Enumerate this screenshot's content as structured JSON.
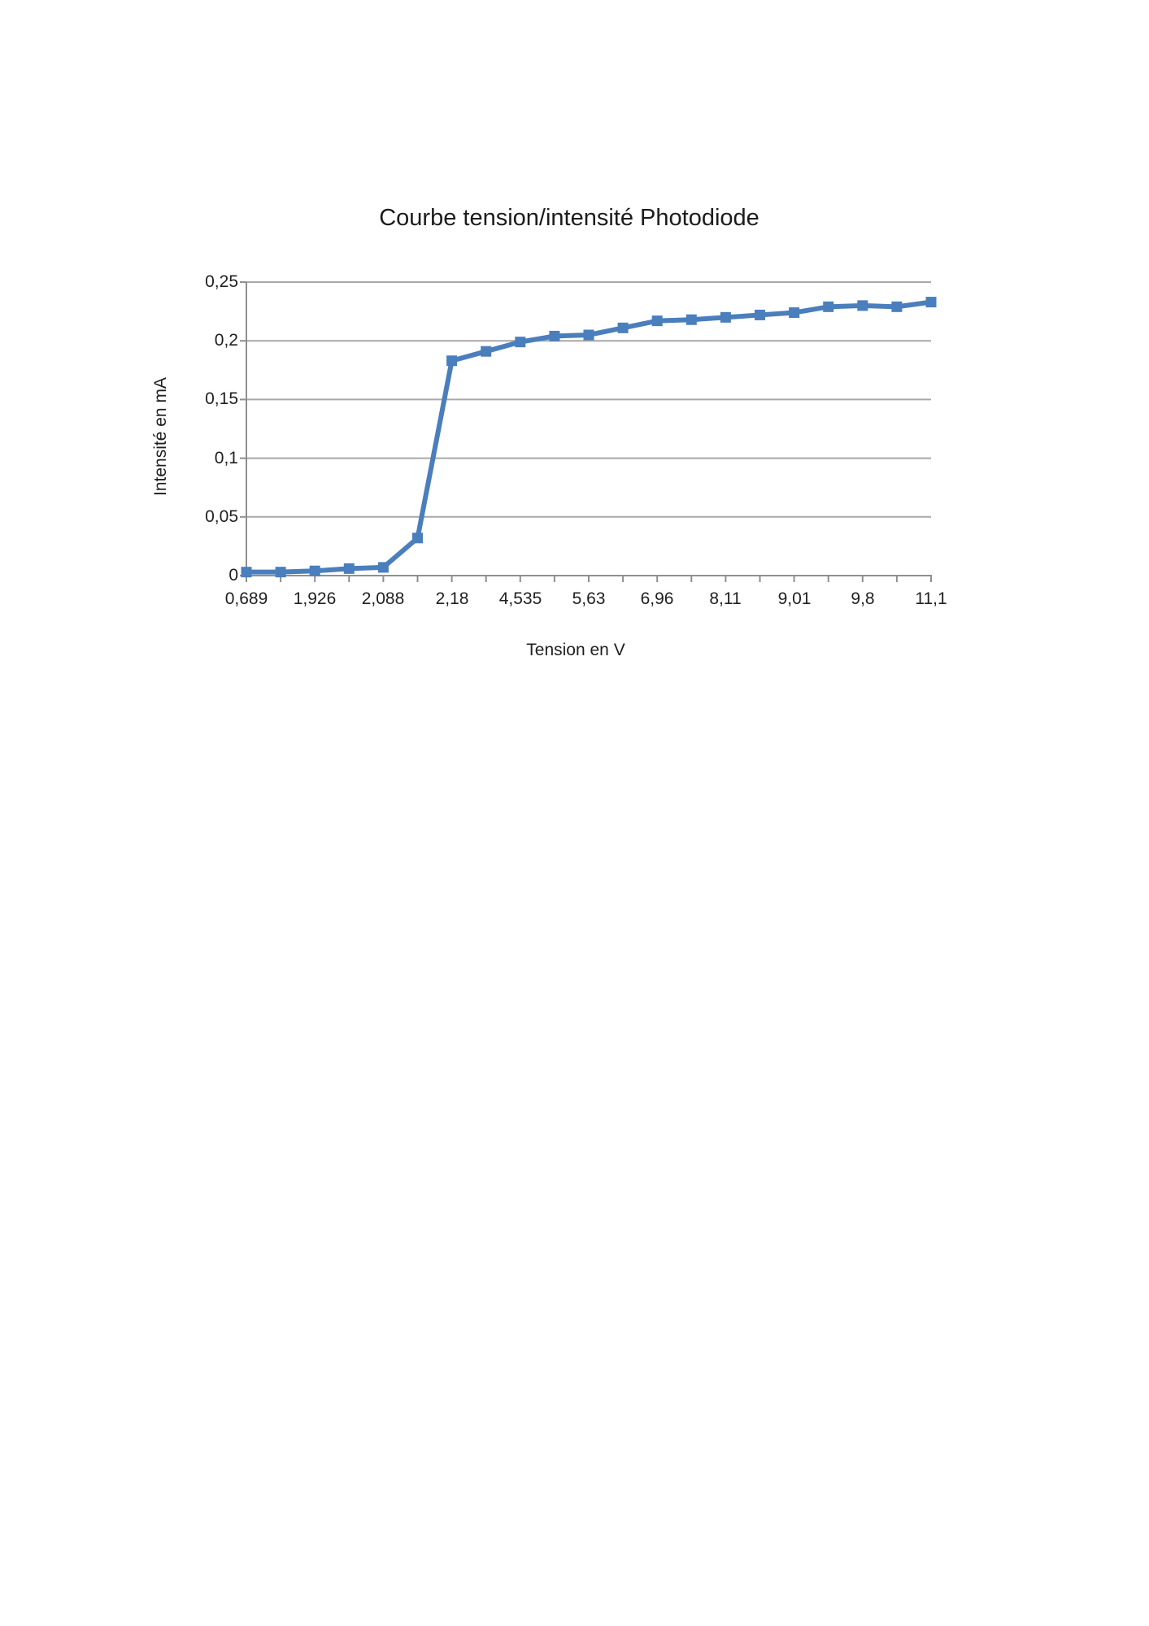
{
  "page": {
    "background_color": "#ffffff"
  },
  "chart_data": {
    "type": "line",
    "title": "Courbe tension/intensité Photodiode",
    "xlabel": "Tension en V",
    "ylabel": "Intensité en mA",
    "ylim": [
      0,
      0.25
    ],
    "grid": true,
    "legend": "none",
    "y_tick_labels": [
      "0,25",
      "0,2",
      "0,15",
      "0,1",
      "0,05",
      "0"
    ],
    "y_tick_values": [
      0.25,
      0.2,
      0.15,
      0.1,
      0.05,
      0
    ],
    "x_tick_labels": [
      "0,689",
      "1,926",
      "2,088",
      "2,18",
      "4,535",
      "5,63",
      "6,96",
      "8,11",
      "9,01",
      "9,8",
      "11,1"
    ],
    "x_label_interval": 2,
    "values": [
      0.003,
      0.003,
      0.004,
      0.006,
      0.007,
      0.032,
      0.183,
      0.191,
      0.199,
      0.204,
      0.205,
      0.211,
      0.217,
      0.218,
      0.22,
      0.222,
      0.224,
      0.229,
      0.23,
      0.229,
      0.233
    ],
    "series_color": "#4a7ebc",
    "marker_shape": "square",
    "gridline_color": "#a8a8a8",
    "axis_color": "#8f8f8f",
    "text_color": "#1f1f1f"
  }
}
